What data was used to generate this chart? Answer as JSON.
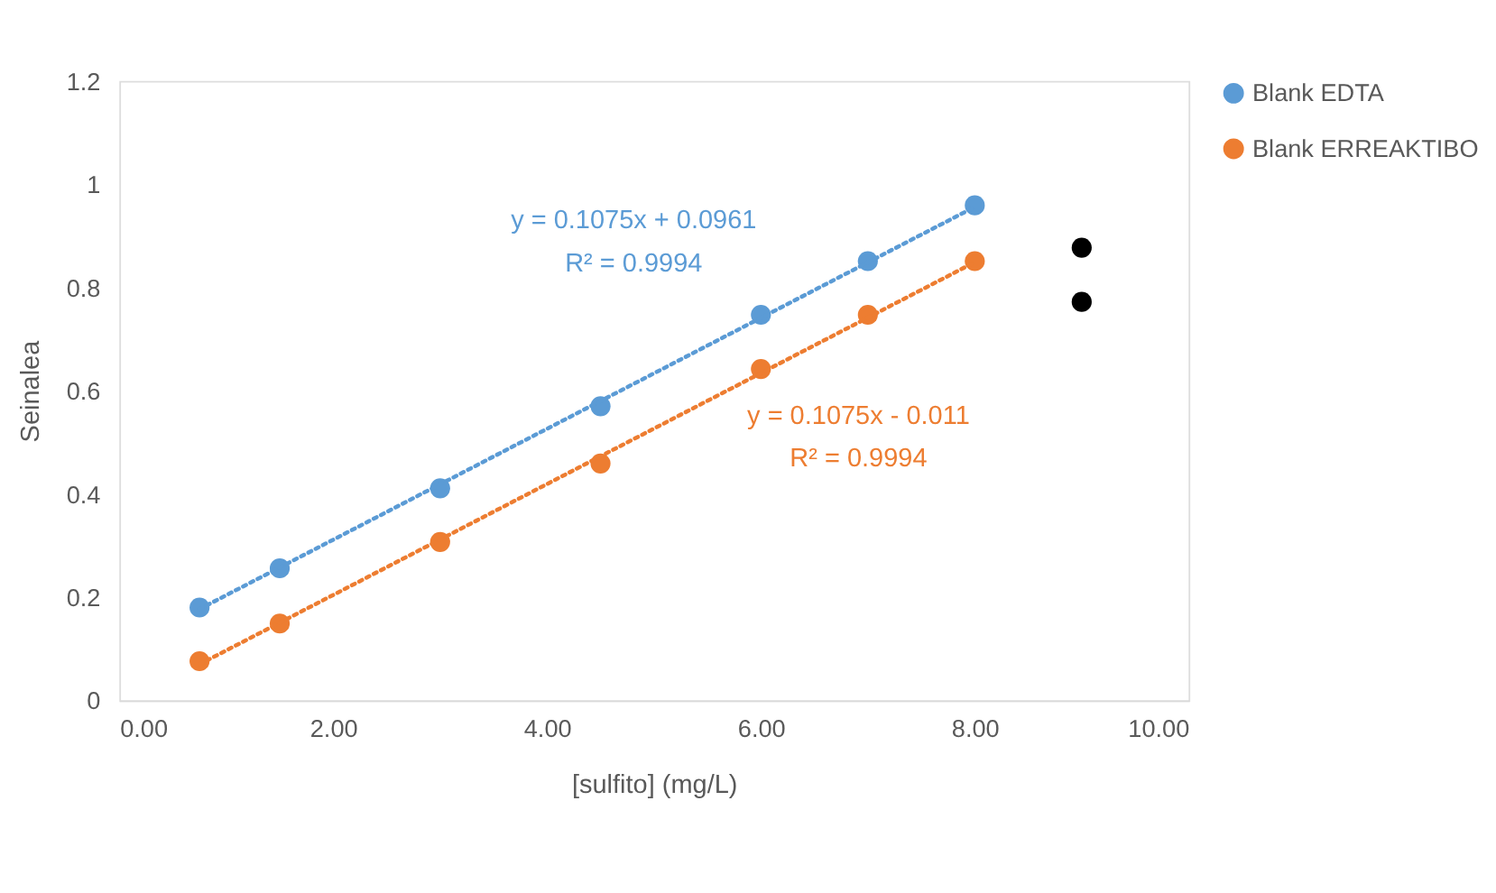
{
  "chart_data": {
    "type": "scatter",
    "xlabel": "[sulfito] (mg/L)",
    "ylabel": "Seinalea",
    "xlim": [
      0,
      10
    ],
    "xticks": [
      {
        "value": 0,
        "label": "0.00"
      },
      {
        "value": 2,
        "label": "2.00"
      },
      {
        "value": 4,
        "label": "4.00"
      },
      {
        "value": 6,
        "label": "6.00"
      },
      {
        "value": 8,
        "label": "8.00"
      },
      {
        "value": 10,
        "label": "10.00"
      }
    ],
    "ylim": [
      0,
      1.2
    ],
    "yticks": [
      {
        "value": 0,
        "label": "0"
      },
      0.2,
      0.4,
      0.6,
      0.8,
      {
        "value": 1,
        "label": "1"
      },
      1.2
    ],
    "marker": "circle",
    "legend": "right",
    "series": [
      {
        "name": "Blank EDTA",
        "type": "scatter",
        "color": "#5b9bd5",
        "x": [
          0.75,
          1.5,
          3,
          4.5,
          6,
          7,
          8
        ],
        "values": [
          0.18,
          0.256,
          0.411,
          0.57,
          0.747,
          0.851,
          0.959
        ]
      },
      {
        "name": "Blank ERREAKTIBO",
        "type": "scatter",
        "color": "#ed7d31",
        "x": [
          0.75,
          1.5,
          3,
          4.5,
          6,
          7,
          8
        ],
        "values": [
          0.076,
          0.149,
          0.307,
          0.459,
          0.642,
          0.747,
          0.851
        ]
      },
      {
        "type": "scatter",
        "color": "#000000",
        "x": [
          9,
          9
        ],
        "values": [
          0.877,
          0.772
        ]
      },
      {
        "type": "line",
        "color": "#5b9bd5",
        "line_style": "dotted",
        "marker": "none",
        "x": [
          0.75,
          8
        ],
        "values": [
          0.177,
          0.956
        ]
      },
      {
        "type": "line",
        "color": "#ed7d31",
        "line_style": "dotted",
        "marker": "none",
        "x": [
          0.75,
          8
        ],
        "values": [
          0.07,
          0.849
        ]
      }
    ],
    "annotations": [
      "y = 0.1075x + 0.0961",
      "R² = 0.9994",
      "y = 0.1075x - 0.011",
      "R² = 0.9994"
    ]
  }
}
